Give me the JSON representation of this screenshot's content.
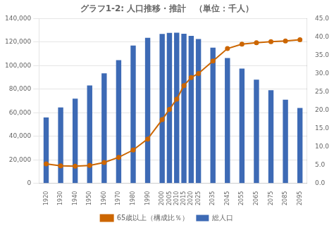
{
  "chart_data": {
    "type": "bar",
    "title": "グラフ1-2: 人口推移・推計　（単位：千人）",
    "x": [
      1920,
      1930,
      1940,
      1950,
      1960,
      1970,
      1980,
      1990,
      2000,
      2005,
      2010,
      2015,
      2020,
      2025,
      2035,
      2045,
      2055,
      2065,
      2075,
      2085,
      2095
    ],
    "series": [
      {
        "name": "総人口",
        "type": "bar",
        "color": "#3d6ab5",
        "values": [
          55963,
          64450,
          71933,
          83200,
          93419,
          104665,
          117060,
          123611,
          126926,
          127768,
          128057,
          127095,
          125325,
          122544,
          115216,
          106421,
          97441,
          88077,
          79191,
          71116,
          63968
        ]
      },
      {
        "name": "65歳以上（構成比％）",
        "type": "line",
        "color": "#cc6600",
        "marker": "circle",
        "axis": "y2",
        "values": [
          5.3,
          4.8,
          4.7,
          4.9,
          5.7,
          7.1,
          9.1,
          12.1,
          17.4,
          20.2,
          23.0,
          26.7,
          28.9,
          30.0,
          33.4,
          36.8,
          38.0,
          38.4,
          38.7,
          38.9,
          39.2
        ]
      }
    ],
    "xlim": [
      1915,
      2100
    ],
    "xticks": [
      1920,
      1930,
      1940,
      1950,
      1960,
      1970,
      1980,
      1990,
      2000,
      2005,
      2010,
      2015,
      2020,
      2025,
      2035,
      2045,
      2055,
      2065,
      2075,
      2085,
      2095
    ],
    "ylim": [
      0,
      140000
    ],
    "yticks": [
      0,
      {
        "value": 20000,
        "label": "20,000"
      },
      {
        "value": 40000,
        "label": "40,000"
      },
      {
        "value": 60000,
        "label": "60,000"
      },
      {
        "value": 80000,
        "label": "80,000"
      },
      {
        "value": 100000,
        "label": "100,000"
      },
      {
        "value": 120000,
        "label": "120,000"
      },
      {
        "value": 140000,
        "label": "140,000"
      }
    ],
    "y2lim": [
      0,
      45.0
    ],
    "y2ticks": [
      {
        "value": 0,
        "label": "0.0"
      },
      {
        "value": 5,
        "label": "5.0"
      },
      {
        "value": 10,
        "label": "10.0"
      },
      {
        "value": 15,
        "label": "15.0"
      },
      {
        "value": 20,
        "label": "20.0"
      },
      {
        "value": 25,
        "label": "25.0"
      },
      {
        "value": 30,
        "label": "30.0"
      },
      {
        "value": 35,
        "label": "35.0"
      },
      {
        "value": 40,
        "label": "40.0"
      },
      {
        "value": 45,
        "label": "45.0"
      }
    ],
    "grid": true,
    "legend": "bottom"
  }
}
